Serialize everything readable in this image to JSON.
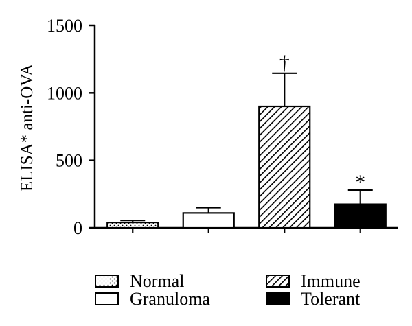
{
  "chart_data": {
    "type": "bar",
    "ylabel": "ELISA* anti-OVA",
    "ylim": [
      0,
      1500
    ],
    "yticks": [
      0,
      500,
      1000,
      1500
    ],
    "categories": [
      "Normal",
      "Granuloma",
      "Immune",
      "Tolerant"
    ],
    "values": [
      40,
      110,
      900,
      175
    ],
    "errors": [
      15,
      40,
      245,
      105
    ],
    "annotations": [
      "",
      "",
      "†",
      "*"
    ],
    "fills": [
      "dotted",
      "white",
      "hatched",
      "black"
    ],
    "legend": {
      "position": "bottom",
      "entries": [
        "Normal",
        "Granuloma",
        "Immune",
        "Tolerant"
      ]
    },
    "grid": false
  }
}
